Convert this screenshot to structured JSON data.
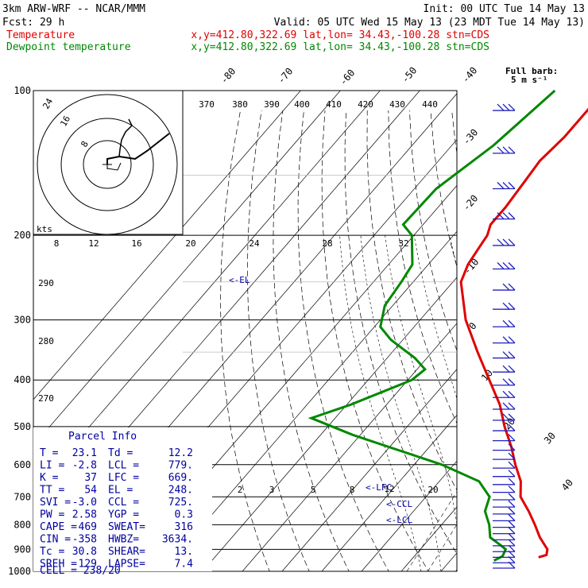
{
  "header": {
    "title": "3km ARW-WRF -- NCAR/MMM",
    "init": "Init: 00 UTC Tue 14 May 13",
    "fcst": "Fcst:    29 h",
    "valid": "Valid: 05 UTC Wed 15 May 13 (23 MDT Tue 14 May 13)",
    "temp_label": "Temperature",
    "dew_label": "Dewpoint temperature",
    "temp_info": "x,y=412.80,322.69   lat,lon= 34.43,-100.28  stn=CDS",
    "dew_info": "x,y=412.80,322.69   lat,lon= 34.43,-100.28  stn=CDS",
    "barb_note_1": "Full barb:",
    "barb_note_2": "5 m s⁻¹"
  },
  "colors": {
    "temperature": "#e00000",
    "dewpoint": "#008800",
    "info": "#0000a0",
    "barbs": "#2020c0"
  },
  "chart_data": {
    "type": "line",
    "title": "",
    "y_axis": "pressure (hPa), log scale",
    "pressure_ticks": [
      100,
      200,
      300,
      400,
      500,
      600,
      700,
      800,
      900,
      1000
    ],
    "isotherm_labels": [
      -80,
      -70,
      -60,
      -50,
      -40,
      -30,
      -20,
      -10,
      0,
      10,
      20,
      30,
      40
    ],
    "theta_labels": [
      370,
      380,
      390,
      400,
      410,
      420,
      430,
      440,
      290,
      280,
      270
    ],
    "mixing_ratio_labels": [
      2,
      3,
      5,
      8,
      12,
      20
    ],
    "series": [
      {
        "name": "Temperature",
        "color": "#e00000",
        "points": [
          [
            100,
            -64.0
          ],
          [
            110,
            -63.5
          ],
          [
            125,
            -63.5
          ],
          [
            140,
            -64.5
          ],
          [
            155,
            -63.8
          ],
          [
            175,
            -63.0
          ],
          [
            190,
            -63.0
          ],
          [
            200,
            -61.5
          ],
          [
            210,
            -61.0
          ],
          [
            230,
            -60.0
          ],
          [
            250,
            -58.0
          ],
          [
            300,
            -48.5
          ],
          [
            350,
            -38.5
          ],
          [
            400,
            -29.5
          ],
          [
            450,
            -21.5
          ],
          [
            500,
            -15.5
          ],
          [
            550,
            -9.5
          ],
          [
            600,
            -4.5
          ],
          [
            650,
            0.5
          ],
          [
            700,
            3.8
          ],
          [
            750,
            9.0
          ],
          [
            800,
            13.5
          ],
          [
            850,
            17.5
          ],
          [
            900,
            22.0
          ],
          [
            925,
            23.0
          ],
          [
            935,
            21.5
          ]
        ]
      },
      {
        "name": "Dewpoint temperature",
        "color": "#008800",
        "points": [
          [
            100,
            -76.0
          ],
          [
            130,
            -79.5
          ],
          [
            160,
            -84.5
          ],
          [
            190,
            -85.0
          ],
          [
            200,
            -80.5
          ],
          [
            230,
            -74.0
          ],
          [
            250,
            -73.0
          ],
          [
            280,
            -72.0
          ],
          [
            310,
            -68.5
          ],
          [
            330,
            -63.0
          ],
          [
            360,
            -53.0
          ],
          [
            380,
            -48.0
          ],
          [
            400,
            -49.0
          ],
          [
            450,
            -59.0
          ],
          [
            480,
            -66.0
          ],
          [
            520,
            -52.0
          ],
          [
            600,
            -23.0
          ],
          [
            650,
            -10.0
          ],
          [
            700,
            -4.0
          ],
          [
            750,
            -2.0
          ],
          [
            800,
            2.0
          ],
          [
            850,
            5.0
          ],
          [
            880,
            9.0
          ],
          [
            900,
            11.5
          ],
          [
            930,
            12.2
          ],
          [
            950,
            11.0
          ]
        ]
      }
    ],
    "levels_marked": [
      {
        "label": "<-EL",
        "p": 248
      },
      {
        "label": "<-LFC",
        "p": 669
      },
      {
        "label": "<-CCL",
        "p": 725
      },
      {
        "label": "<-LCL",
        "p": 779
      }
    ],
    "hodograph": {
      "unit_label": "kts",
      "ring_labels": [
        "8",
        "16",
        "24"
      ],
      "knot_scale": [
        "8",
        "12",
        "16",
        "20",
        "24",
        "28",
        "32"
      ]
    },
    "parcel_info": {
      "title": "Parcel Info",
      "rows": [
        [
          "T  =",
          "23.1",
          "Td =",
          "12.2"
        ],
        [
          "LI =",
          "-2.8",
          "LCL =",
          "779."
        ],
        [
          "K  =",
          "37",
          "LFC =",
          "669."
        ],
        [
          "TT =",
          "54",
          "EL =",
          "248."
        ],
        [
          "SVI =",
          "-3.0",
          "CCL =",
          "725."
        ],
        [
          "PW =",
          "2.58",
          "YGP =",
          "0.3"
        ],
        [
          "CAPE =",
          "469",
          "SWEAT=",
          "316"
        ],
        [
          "CIN =",
          "-358",
          "HWBZ=",
          "3634."
        ],
        [
          "Tc =",
          "30.8",
          "SHEAR=",
          "13."
        ],
        [
          "SREH =",
          "129",
          "LAPSE=",
          "7.4"
        ]
      ],
      "cell": "CELL = 238/20"
    }
  }
}
